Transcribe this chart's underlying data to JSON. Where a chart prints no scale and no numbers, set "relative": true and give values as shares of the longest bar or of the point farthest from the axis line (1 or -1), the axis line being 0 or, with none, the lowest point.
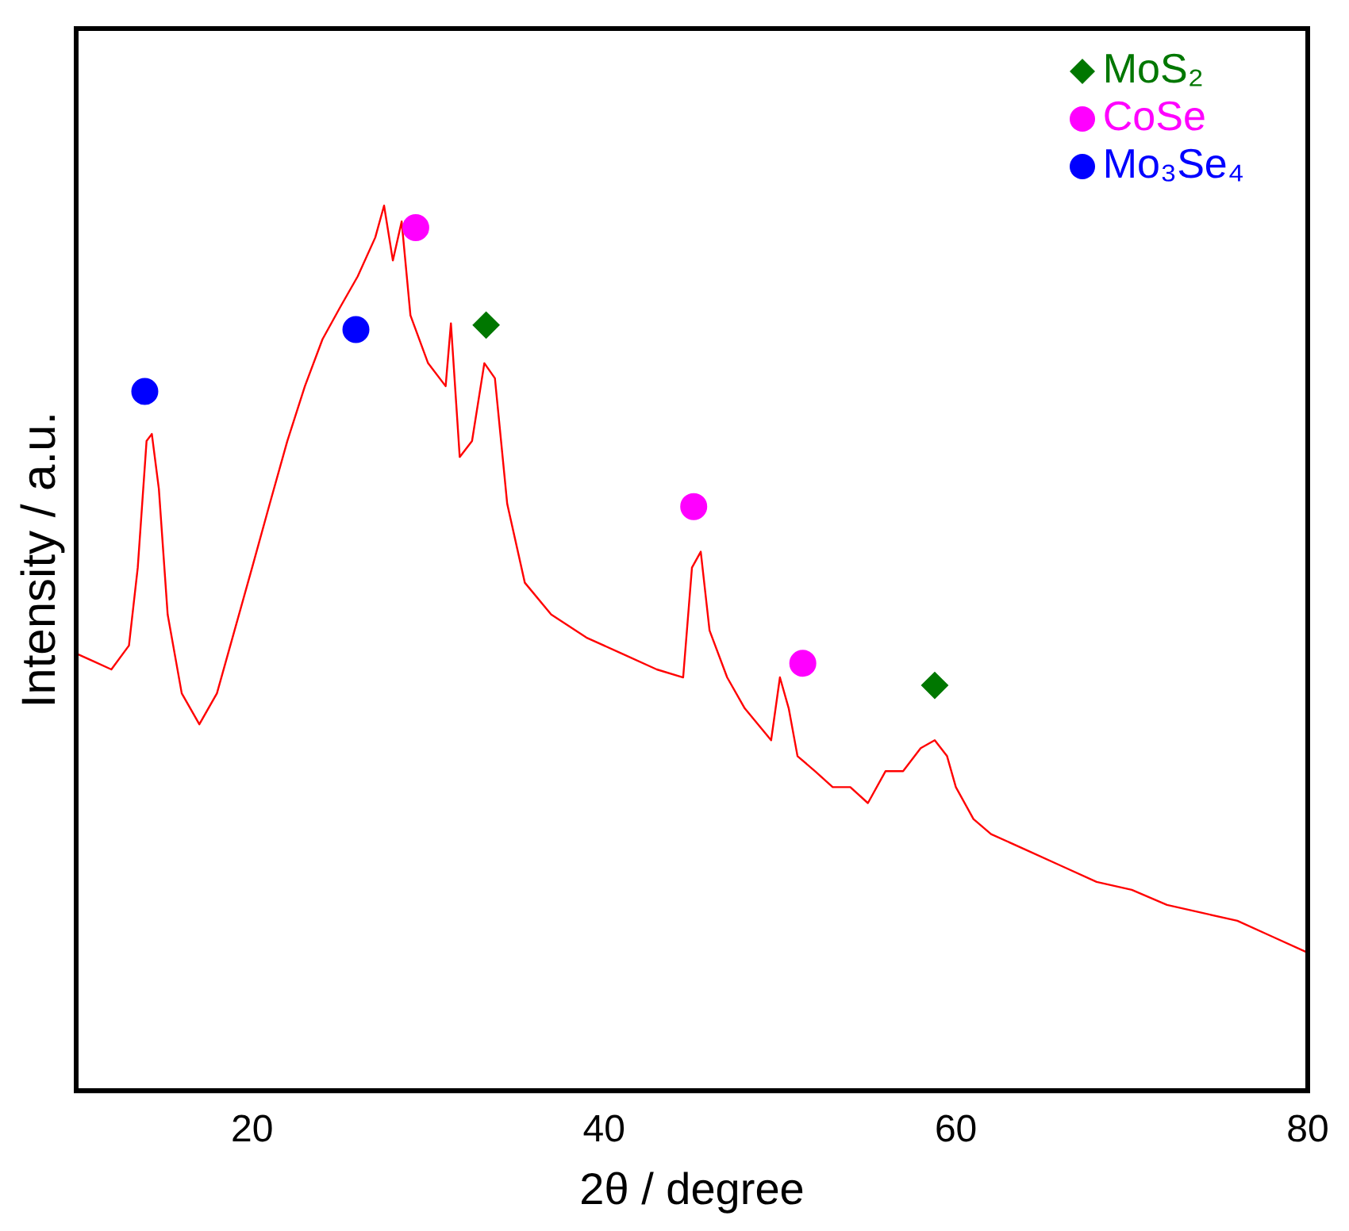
{
  "chart_data": {
    "type": "line",
    "xlabel": "2θ / degree",
    "ylabel": "Intensity / a.u.",
    "relative": true,
    "xlim": [
      10,
      80
    ],
    "xticks": [
      20,
      40,
      60,
      80
    ],
    "grid": false,
    "legend": "top right",
    "marker": "none",
    "line_style": "solid",
    "series": [
      {
        "color": "#ff0000",
        "x": [
          10,
          11,
          12,
          13,
          13.5,
          14,
          14.3,
          14.7,
          15.2,
          16,
          17,
          18,
          19,
          20,
          21,
          22,
          23,
          24,
          25,
          26,
          27,
          27.5,
          28,
          28.5,
          29,
          30,
          31,
          31.3,
          31.8,
          32.5,
          33.2,
          33.8,
          34.5,
          35.5,
          37,
          39,
          41,
          43,
          44.5,
          45,
          45.5,
          46,
          47,
          48,
          49.5,
          50,
          50.5,
          51,
          52,
          53,
          54,
          55,
          56,
          57,
          58,
          58.8,
          59.5,
          60,
          61,
          62,
          64,
          66,
          68,
          70,
          72,
          74,
          76,
          78,
          80
        ],
        "values": [
          0.494,
          0.485,
          0.476,
          0.503,
          0.591,
          0.734,
          0.742,
          0.68,
          0.538,
          0.449,
          0.414,
          0.449,
          0.52,
          0.591,
          0.663,
          0.734,
          0.796,
          0.849,
          0.885,
          0.92,
          0.964,
          1,
          0.938,
          0.982,
          0.876,
          0.822,
          0.796,
          0.867,
          0.716,
          0.734,
          0.822,
          0.805,
          0.663,
          0.574,
          0.538,
          0.512,
          0.494,
          0.476,
          0.467,
          0.591,
          0.609,
          0.52,
          0.467,
          0.432,
          0.396,
          0.467,
          0.432,
          0.378,
          0.361,
          0.343,
          0.343,
          0.325,
          0.361,
          0.361,
          0.387,
          0.396,
          0.378,
          0.343,
          0.307,
          0.29,
          0.272,
          0.254,
          0.236,
          0.227,
          0.21,
          0.201,
          0.192,
          0.174,
          0.156
        ]
      },
      {
        "type": "scatter",
        "name": "MoS₂",
        "color": "#007700",
        "marker": "diamond",
        "x": [
          33.3,
          58.8
        ],
        "values": [
          0.865,
          0.458
        ]
      },
      {
        "type": "scatter",
        "name": "CoSe",
        "color": "#ff00ff",
        "marker": "circle",
        "x": [
          29.3,
          45.1,
          51.3
        ],
        "values": [
          0.975,
          0.66,
          0.483
        ]
      },
      {
        "type": "scatter",
        "name": "Mo₃Se₄",
        "color": "#0000ff",
        "marker": "circle",
        "x": [
          13.9,
          25.9
        ],
        "values": [
          0.79,
          0.86
        ]
      }
    ]
  }
}
